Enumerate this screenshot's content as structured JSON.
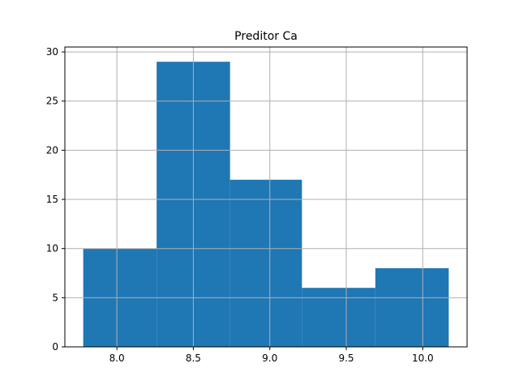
{
  "chart_data": {
    "type": "bar",
    "title": "Preditor Ca",
    "xlabel": "",
    "ylabel": "",
    "grid": true,
    "xlim": [
      7.66,
      10.29
    ],
    "ylim": [
      0,
      30.5
    ],
    "xticks": [
      8.0,
      8.5,
      9.0,
      9.5,
      10.0
    ],
    "xtick_labels": [
      "8.0",
      "8.5",
      "9.0",
      "9.5",
      "10.0"
    ],
    "yticks": [
      0,
      5,
      10,
      15,
      20,
      25,
      30
    ],
    "ytick_labels": [
      "0",
      "5",
      "10",
      "15",
      "20",
      "25",
      "30"
    ],
    "bins": [
      {
        "start": 7.78,
        "end": 8.26,
        "count": 10
      },
      {
        "start": 8.26,
        "end": 8.74,
        "count": 29
      },
      {
        "start": 8.74,
        "end": 9.21,
        "count": 17
      },
      {
        "start": 9.21,
        "end": 9.69,
        "count": 6
      },
      {
        "start": 9.69,
        "end": 10.17,
        "count": 8
      }
    ],
    "bar_color": "#1f77b4"
  }
}
